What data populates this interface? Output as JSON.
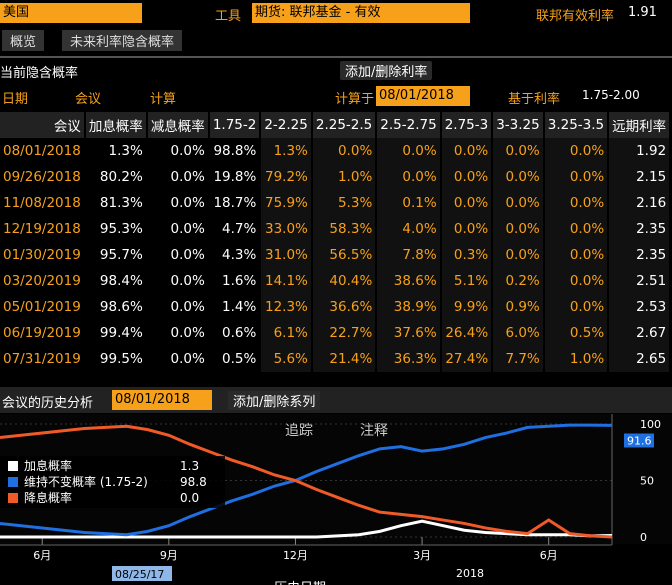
{
  "top": {
    "country": "美国",
    "tool_label": "工具",
    "instrument": "期货: 联邦基金 - 有效",
    "rate_label": "联邦有效利率",
    "rate_value": "1.91"
  },
  "tabs": [
    "概览",
    "未来利率隐含概率"
  ],
  "section": {
    "title": "当前隐含概率",
    "button": "添加/删除利率",
    "date_label": "日期",
    "option_meeting": "会议",
    "option_calc": "计算",
    "calc_label": "计算于",
    "calc_date": "08/01/2018",
    "base_label": "基于利率",
    "base_value": "1.75-2.00"
  },
  "table": {
    "header": [
      "会议",
      "加息概率",
      "减息概率",
      "1.75-2",
      "2-2.25",
      "2.25-2.5",
      "2.5-2.75",
      "2.75-3",
      "3-3.25",
      "3.25-3.5",
      "远期利率"
    ],
    "rows": [
      [
        "08/01/2018",
        "1.3%",
        "0.0%",
        "98.8%",
        "1.3%",
        "0.0%",
        "0.0%",
        "0.0%",
        "0.0%",
        "0.0%",
        "1.92"
      ],
      [
        "09/26/2018",
        "80.2%",
        "0.0%",
        "19.8%",
        "79.2%",
        "1.0%",
        "0.0%",
        "0.0%",
        "0.0%",
        "0.0%",
        "2.15"
      ],
      [
        "11/08/2018",
        "81.3%",
        "0.0%",
        "18.7%",
        "75.9%",
        "5.3%",
        "0.1%",
        "0.0%",
        "0.0%",
        "0.0%",
        "2.16"
      ],
      [
        "12/19/2018",
        "95.3%",
        "0.0%",
        "4.7%",
        "33.0%",
        "58.3%",
        "4.0%",
        "0.0%",
        "0.0%",
        "0.0%",
        "2.35"
      ],
      [
        "01/30/2019",
        "95.7%",
        "0.0%",
        "4.3%",
        "31.0%",
        "56.5%",
        "7.8%",
        "0.3%",
        "0.0%",
        "0.0%",
        "2.35"
      ],
      [
        "03/20/2019",
        "98.4%",
        "0.0%",
        "1.6%",
        "14.1%",
        "40.4%",
        "38.6%",
        "5.1%",
        "0.2%",
        "0.0%",
        "2.51"
      ],
      [
        "05/01/2019",
        "98.6%",
        "0.0%",
        "1.4%",
        "12.3%",
        "36.6%",
        "38.9%",
        "9.9%",
        "0.9%",
        "0.0%",
        "2.53"
      ],
      [
        "06/19/2019",
        "99.4%",
        "0.0%",
        "0.6%",
        "6.1%",
        "22.7%",
        "37.6%",
        "26.4%",
        "6.0%",
        "0.5%",
        "2.67"
      ],
      [
        "07/31/2019",
        "99.5%",
        "0.0%",
        "0.5%",
        "5.6%",
        "21.4%",
        "36.3%",
        "27.4%",
        "7.7%",
        "1.0%",
        "2.65"
      ]
    ]
  },
  "history": {
    "title": "会议的历史分析",
    "date": "08/01/2018",
    "button": "添加/删除系列",
    "tools": [
      "追踪",
      "注释"
    ],
    "chart": {
      "type": "line",
      "ylim": [
        0,
        100
      ],
      "yticks": [
        0,
        50,
        100
      ],
      "xlim": [
        0,
        29
      ],
      "xticks": [
        {
          "value": 2,
          "label": "6月"
        },
        {
          "value": 8,
          "label": "9月"
        },
        {
          "value": 14,
          "label": "12月"
        },
        {
          "value": 20,
          "label": "3月"
        },
        {
          "value": 26,
          "label": "6月"
        }
      ],
      "start_date": "08/25/17",
      "year_label": "2018",
      "x_title": "历史日期",
      "last_value_label": "91.6",
      "series": [
        {
          "name": "加息概率",
          "color": "#ffffff",
          "last": "1.3",
          "values": [
            0,
            0,
            0,
            0,
            0,
            0,
            0,
            0,
            0,
            0,
            0,
            0,
            0,
            0,
            0,
            0,
            1,
            2,
            5,
            10,
            14,
            10,
            6,
            4,
            3,
            2,
            2,
            2,
            1,
            1.3
          ]
        },
        {
          "name": "维持不变概率 (1.75-2)",
          "color": "#1f6fe0",
          "last": "98.8",
          "values": [
            12,
            10,
            8,
            6,
            4,
            3,
            2,
            5,
            10,
            18,
            25,
            32,
            38,
            45,
            50,
            58,
            65,
            72,
            78,
            80,
            76,
            78,
            82,
            88,
            92,
            97,
            98,
            99,
            99,
            98.8
          ]
        },
        {
          "name": "降息概率",
          "color": "#f05a28",
          "last": "0.0",
          "values": [
            88,
            90,
            92,
            94,
            96,
            97,
            98,
            95,
            90,
            82,
            75,
            68,
            62,
            55,
            50,
            42,
            35,
            28,
            22,
            20,
            18,
            15,
            12,
            8,
            5,
            3,
            15,
            3,
            1,
            0
          ]
        }
      ]
    }
  }
}
